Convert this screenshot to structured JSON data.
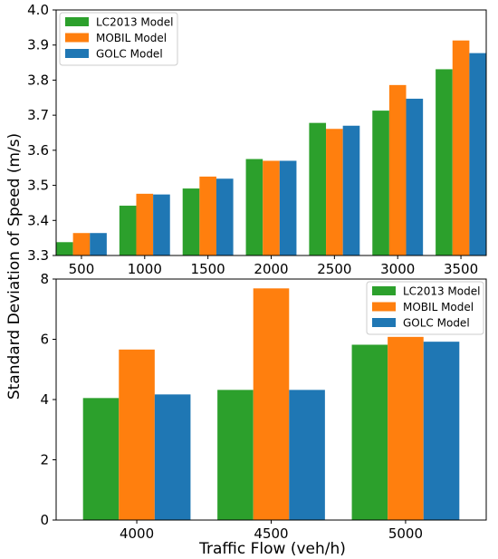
{
  "ylabel": "Standard Deviation of Speed (m/s)",
  "xlabel": "Traffic Flow (veh/h)",
  "colors": {
    "LC2013 Model": "#2ca02c",
    "MOBIL Model": "#ff7f0e",
    "GOLC Model": "#1f77b4"
  },
  "chart_data": [
    {
      "type": "bar",
      "categories": [
        "500",
        "1000",
        "1500",
        "2000",
        "2500",
        "3000",
        "3500"
      ],
      "series": [
        {
          "name": "LC2013 Model",
          "values": [
            3.338,
            3.442,
            3.491,
            3.575,
            3.678,
            3.713,
            3.831
          ]
        },
        {
          "name": "MOBIL Model",
          "values": [
            3.364,
            3.476,
            3.525,
            3.57,
            3.661,
            3.786,
            3.913
          ]
        },
        {
          "name": "GOLC Model",
          "values": [
            3.364,
            3.474,
            3.519,
            3.57,
            3.67,
            3.747,
            3.877
          ]
        }
      ],
      "ylim": [
        3.3,
        4.0
      ],
      "yticks": [
        "3.3",
        "3.4",
        "3.5",
        "3.6",
        "3.7",
        "3.8",
        "3.9",
        "4.0"
      ],
      "legend": "top-left",
      "grid": false
    },
    {
      "type": "bar",
      "categories": [
        "4000",
        "4500",
        "5000"
      ],
      "series": [
        {
          "name": "LC2013 Model",
          "values": [
            4.05,
            4.32,
            5.82
          ]
        },
        {
          "name": "MOBIL Model",
          "values": [
            5.66,
            7.69,
            6.08
          ]
        },
        {
          "name": "GOLC Model",
          "values": [
            4.17,
            4.32,
            5.92
          ]
        }
      ],
      "ylim": [
        0,
        8
      ],
      "yticks": [
        "0",
        "2",
        "4",
        "6",
        "8"
      ],
      "legend": "top-right",
      "grid": false
    }
  ]
}
